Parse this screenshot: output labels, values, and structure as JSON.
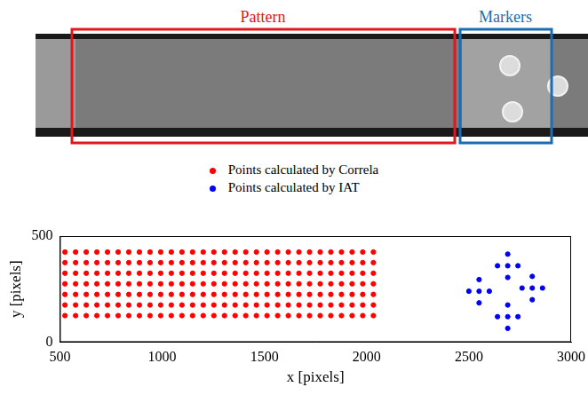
{
  "image": {
    "labels": [
      {
        "text": "Pattern",
        "color": "#e3161d"
      },
      {
        "text": "Markers",
        "color": "#1b6db3"
      }
    ]
  },
  "chart_data": {
    "type": "scatter",
    "x_label": "x [pixels]",
    "y_label": "y [pixels]",
    "xlim": [
      500,
      3000
    ],
    "xticks": [
      500,
      1000,
      1500,
      2000,
      2500,
      3000
    ],
    "ylim": [
      0,
      500
    ],
    "yticks": [
      0,
      500
    ],
    "grid": false,
    "legend": "top",
    "series": [
      {
        "name": "Points calculated by Correla",
        "color": "#ff0000",
        "marker": "circle",
        "points": [
          [
            525,
            125
          ],
          [
            577,
            125
          ],
          [
            629,
            125
          ],
          [
            681,
            125
          ],
          [
            733,
            125
          ],
          [
            785,
            125
          ],
          [
            837,
            125
          ],
          [
            889,
            125
          ],
          [
            941,
            125
          ],
          [
            993,
            125
          ],
          [
            1045,
            125
          ],
          [
            1097,
            125
          ],
          [
            1149,
            125
          ],
          [
            1201,
            125
          ],
          [
            1253,
            125
          ],
          [
            1305,
            125
          ],
          [
            1357,
            125
          ],
          [
            1409,
            125
          ],
          [
            1461,
            125
          ],
          [
            1513,
            125
          ],
          [
            1565,
            125
          ],
          [
            1617,
            125
          ],
          [
            1669,
            125
          ],
          [
            1721,
            125
          ],
          [
            1773,
            125
          ],
          [
            1825,
            125
          ],
          [
            1877,
            125
          ],
          [
            1929,
            125
          ],
          [
            1981,
            125
          ],
          [
            2033,
            125
          ],
          [
            525,
            175
          ],
          [
            577,
            175
          ],
          [
            629,
            175
          ],
          [
            681,
            175
          ],
          [
            733,
            175
          ],
          [
            785,
            175
          ],
          [
            837,
            175
          ],
          [
            889,
            175
          ],
          [
            941,
            175
          ],
          [
            993,
            175
          ],
          [
            1045,
            175
          ],
          [
            1097,
            175
          ],
          [
            1149,
            175
          ],
          [
            1201,
            175
          ],
          [
            1253,
            175
          ],
          [
            1305,
            175
          ],
          [
            1357,
            175
          ],
          [
            1409,
            175
          ],
          [
            1461,
            175
          ],
          [
            1513,
            175
          ],
          [
            1565,
            175
          ],
          [
            1617,
            175
          ],
          [
            1669,
            175
          ],
          [
            1721,
            175
          ],
          [
            1773,
            175
          ],
          [
            1825,
            175
          ],
          [
            1877,
            175
          ],
          [
            1929,
            175
          ],
          [
            1981,
            175
          ],
          [
            2033,
            175
          ],
          [
            525,
            225
          ],
          [
            577,
            225
          ],
          [
            629,
            225
          ],
          [
            681,
            225
          ],
          [
            733,
            225
          ],
          [
            785,
            225
          ],
          [
            837,
            225
          ],
          [
            889,
            225
          ],
          [
            941,
            225
          ],
          [
            993,
            225
          ],
          [
            1045,
            225
          ],
          [
            1097,
            225
          ],
          [
            1149,
            225
          ],
          [
            1201,
            225
          ],
          [
            1253,
            225
          ],
          [
            1305,
            225
          ],
          [
            1357,
            225
          ],
          [
            1409,
            225
          ],
          [
            1461,
            225
          ],
          [
            1513,
            225
          ],
          [
            1565,
            225
          ],
          [
            1617,
            225
          ],
          [
            1669,
            225
          ],
          [
            1721,
            225
          ],
          [
            1773,
            225
          ],
          [
            1825,
            225
          ],
          [
            1877,
            225
          ],
          [
            1929,
            225
          ],
          [
            1981,
            225
          ],
          [
            2033,
            225
          ],
          [
            525,
            275
          ],
          [
            577,
            275
          ],
          [
            629,
            275
          ],
          [
            681,
            275
          ],
          [
            733,
            275
          ],
          [
            785,
            275
          ],
          [
            837,
            275
          ],
          [
            889,
            275
          ],
          [
            941,
            275
          ],
          [
            993,
            275
          ],
          [
            1045,
            275
          ],
          [
            1097,
            275
          ],
          [
            1149,
            275
          ],
          [
            1201,
            275
          ],
          [
            1253,
            275
          ],
          [
            1305,
            275
          ],
          [
            1357,
            275
          ],
          [
            1409,
            275
          ],
          [
            1461,
            275
          ],
          [
            1513,
            275
          ],
          [
            1565,
            275
          ],
          [
            1617,
            275
          ],
          [
            1669,
            275
          ],
          [
            1721,
            275
          ],
          [
            1773,
            275
          ],
          [
            1825,
            275
          ],
          [
            1877,
            275
          ],
          [
            1929,
            275
          ],
          [
            1981,
            275
          ],
          [
            2033,
            275
          ],
          [
            525,
            325
          ],
          [
            577,
            325
          ],
          [
            629,
            325
          ],
          [
            681,
            325
          ],
          [
            733,
            325
          ],
          [
            785,
            325
          ],
          [
            837,
            325
          ],
          [
            889,
            325
          ],
          [
            941,
            325
          ],
          [
            993,
            325
          ],
          [
            1045,
            325
          ],
          [
            1097,
            325
          ],
          [
            1149,
            325
          ],
          [
            1201,
            325
          ],
          [
            1253,
            325
          ],
          [
            1305,
            325
          ],
          [
            1357,
            325
          ],
          [
            1409,
            325
          ],
          [
            1461,
            325
          ],
          [
            1513,
            325
          ],
          [
            1565,
            325
          ],
          [
            1617,
            325
          ],
          [
            1669,
            325
          ],
          [
            1721,
            325
          ],
          [
            1773,
            325
          ],
          [
            1825,
            325
          ],
          [
            1877,
            325
          ],
          [
            1929,
            325
          ],
          [
            1981,
            325
          ],
          [
            2033,
            325
          ],
          [
            525,
            375
          ],
          [
            577,
            375
          ],
          [
            629,
            375
          ],
          [
            681,
            375
          ],
          [
            733,
            375
          ],
          [
            785,
            375
          ],
          [
            837,
            375
          ],
          [
            889,
            375
          ],
          [
            941,
            375
          ],
          [
            993,
            375
          ],
          [
            1045,
            375
          ],
          [
            1097,
            375
          ],
          [
            1149,
            375
          ],
          [
            1201,
            375
          ],
          [
            1253,
            375
          ],
          [
            1305,
            375
          ],
          [
            1357,
            375
          ],
          [
            1409,
            375
          ],
          [
            1461,
            375
          ],
          [
            1513,
            375
          ],
          [
            1565,
            375
          ],
          [
            1617,
            375
          ],
          [
            1669,
            375
          ],
          [
            1721,
            375
          ],
          [
            1773,
            375
          ],
          [
            1825,
            375
          ],
          [
            1877,
            375
          ],
          [
            1929,
            375
          ],
          [
            1981,
            375
          ],
          [
            2033,
            375
          ],
          [
            525,
            425
          ],
          [
            577,
            425
          ],
          [
            629,
            425
          ],
          [
            681,
            425
          ],
          [
            733,
            425
          ],
          [
            785,
            425
          ],
          [
            837,
            425
          ],
          [
            889,
            425
          ],
          [
            941,
            425
          ],
          [
            993,
            425
          ],
          [
            1045,
            425
          ],
          [
            1097,
            425
          ],
          [
            1149,
            425
          ],
          [
            1201,
            425
          ],
          [
            1253,
            425
          ],
          [
            1305,
            425
          ],
          [
            1357,
            425
          ],
          [
            1409,
            425
          ],
          [
            1461,
            425
          ],
          [
            1513,
            425
          ],
          [
            1565,
            425
          ],
          [
            1617,
            425
          ],
          [
            1669,
            425
          ],
          [
            1721,
            425
          ],
          [
            1773,
            425
          ],
          [
            1825,
            425
          ],
          [
            1877,
            425
          ],
          [
            1929,
            425
          ],
          [
            1981,
            425
          ],
          [
            2033,
            425
          ]
        ]
      },
      {
        "name": "Points calculated by IAT",
        "color": "#0000ff",
        "marker": "circle",
        "points": [
          [
            2500,
            240
          ],
          [
            2550,
            240
          ],
          [
            2600,
            240
          ],
          [
            2550,
            185
          ],
          [
            2550,
            295
          ],
          [
            2640,
            360
          ],
          [
            2690,
            360
          ],
          [
            2740,
            360
          ],
          [
            2690,
            305
          ],
          [
            2690,
            415
          ],
          [
            2760,
            255
          ],
          [
            2810,
            255
          ],
          [
            2860,
            255
          ],
          [
            2810,
            200
          ],
          [
            2810,
            310
          ],
          [
            2640,
            120
          ],
          [
            2690,
            120
          ],
          [
            2740,
            120
          ],
          [
            2690,
            65
          ],
          [
            2690,
            175
          ]
        ]
      }
    ]
  }
}
